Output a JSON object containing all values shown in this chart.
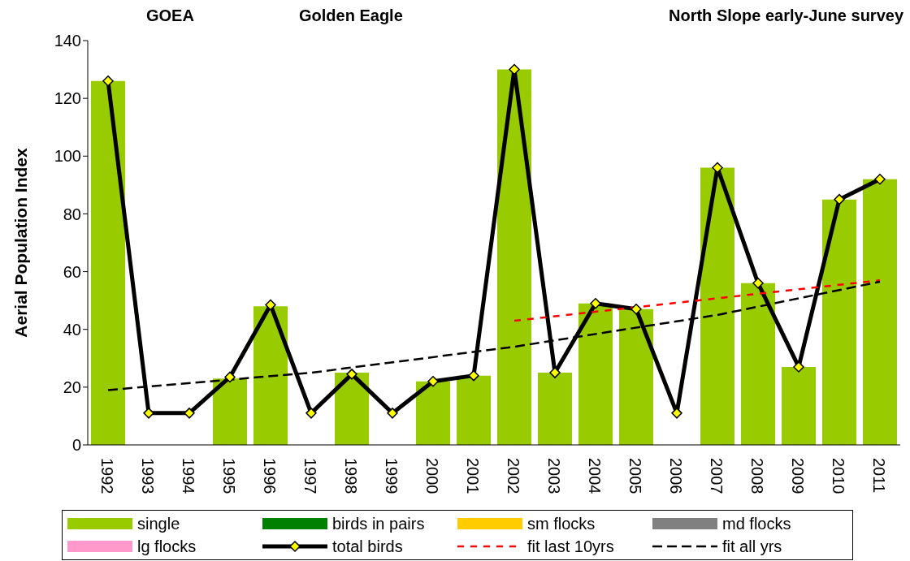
{
  "chart_data": {
    "type": "bar",
    "title": "GOEA",
    "subtitle": "Golden Eagle",
    "annotations": [
      "North Slope early-June survey"
    ],
    "ylabel": "Aerial Population Index",
    "categories": [
      "1992",
      "1993",
      "1994",
      "1995",
      "1996",
      "1997",
      "1998",
      "1999",
      "2000",
      "2001",
      "2002",
      "2003",
      "2004",
      "2005",
      "2006",
      "2007",
      "2008",
      "2009",
      "2010",
      "2011"
    ],
    "stacked": true,
    "ylim": [
      0,
      140
    ],
    "yticks": [
      0,
      20,
      40,
      60,
      80,
      100,
      120,
      140
    ],
    "grid": false,
    "legend": "bottom",
    "series": [
      {
        "name": "single",
        "color": "#99cc00",
        "values": [
          126,
          0,
          0,
          23,
          48,
          0,
          25,
          0,
          22,
          24,
          130,
          25,
          49,
          47,
          0,
          96,
          56,
          27,
          85,
          92
        ]
      },
      {
        "name": "birds in pairs",
        "color": "#008000",
        "values": [
          0,
          0,
          0,
          0,
          0,
          0,
          0,
          0,
          0,
          0,
          0,
          0,
          0,
          0,
          0,
          0,
          0,
          0,
          0,
          0
        ]
      },
      {
        "name": "sm flocks",
        "color": "#ffcc00",
        "values": [
          0,
          0,
          0,
          0,
          0,
          0,
          0,
          0,
          0,
          0,
          0,
          0,
          0,
          0,
          0,
          0,
          0,
          0,
          0,
          0
        ]
      },
      {
        "name": "md flocks",
        "color": "#808080",
        "values": [
          0,
          0,
          0,
          0,
          0,
          0,
          0,
          0,
          0,
          0,
          0,
          0,
          0,
          0,
          0,
          0,
          0,
          0,
          0,
          0
        ]
      },
      {
        "name": "lg flocks",
        "color": "#ff99cc",
        "values": [
          0,
          0,
          0,
          0,
          0,
          0,
          0,
          0,
          0,
          0,
          0,
          0,
          0,
          0,
          0,
          0,
          0,
          0,
          0,
          0
        ]
      },
      {
        "name": "total birds",
        "type": "line",
        "color": "#000000",
        "marker": "diamond",
        "line_style": "solid",
        "values": [
          126,
          11,
          11,
          23.5,
          48.5,
          11,
          24.5,
          11,
          22,
          24,
          130,
          25,
          49,
          47,
          11,
          96,
          56,
          27,
          85,
          92
        ]
      },
      {
        "name": "fit last 10yrs",
        "type": "line",
        "color": "#ff0000",
        "marker": "none",
        "line_style": "dashed",
        "values": [
          null,
          null,
          null,
          null,
          null,
          null,
          null,
          null,
          null,
          null,
          43,
          null,
          null,
          null,
          null,
          null,
          null,
          null,
          null,
          57
        ]
      },
      {
        "name": "fit all yrs",
        "type": "line",
        "color": "#000000",
        "marker": "none",
        "line_style": "dashed",
        "values": [
          19,
          null,
          null,
          null,
          null,
          25,
          null,
          null,
          null,
          null,
          34,
          null,
          null,
          null,
          null,
          45,
          null,
          null,
          null,
          56.5
        ]
      }
    ]
  }
}
